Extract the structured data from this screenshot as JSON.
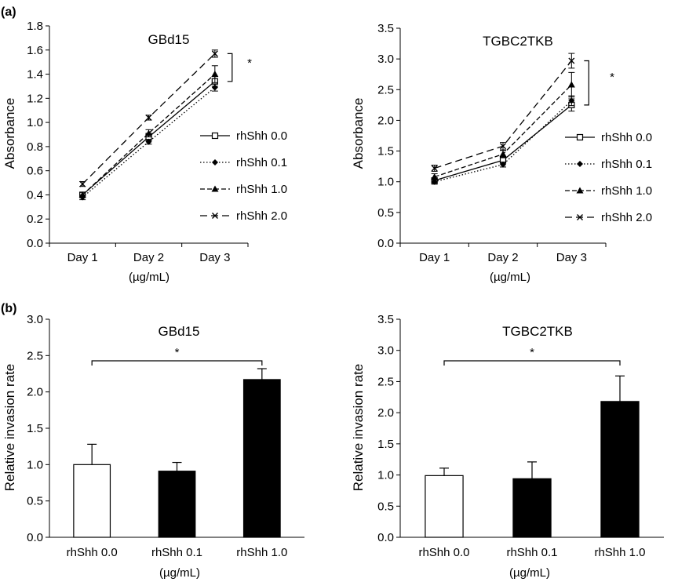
{
  "panels": {
    "a": "(a)",
    "b": "(b)"
  },
  "chart_data": [
    {
      "id": "a-left",
      "type": "line",
      "title": "GBd15",
      "ylabel": "Absorbance",
      "xlabel": "(µg/mL)",
      "categories": [
        "Day 1",
        "Day 2",
        "Day 3"
      ],
      "ylim": [
        0,
        1.8
      ],
      "yticks": [
        "0.0",
        "0.2",
        "0.4",
        "0.6",
        "0.8",
        "1.0",
        "1.2",
        "1.4",
        "1.6",
        "1.8"
      ],
      "significance": "*",
      "series": [
        {
          "name": "rhShh 0.0",
          "values": [
            0.4,
            0.88,
            1.34
          ],
          "errors": [
            0.02,
            0.03,
            0.04
          ],
          "dash": "solid",
          "marker": "square"
        },
        {
          "name": "rhShh 0.1",
          "values": [
            0.38,
            0.84,
            1.29
          ],
          "errors": [
            0.02,
            0.02,
            0.03
          ],
          "dash": "dotted",
          "marker": "diamond"
        },
        {
          "name": "rhShh 1.0",
          "values": [
            0.4,
            0.91,
            1.4
          ],
          "errors": [
            0.02,
            0.03,
            0.07
          ],
          "dash": "dashed",
          "marker": "triangle"
        },
        {
          "name": "rhShh 2.0",
          "values": [
            0.49,
            1.04,
            1.57
          ],
          "errors": [
            0.02,
            0.02,
            0.03
          ],
          "dash": "longdash",
          "marker": "x"
        }
      ]
    },
    {
      "id": "a-right",
      "type": "line",
      "title": "TGBC2TKB",
      "ylabel": "Absorbance",
      "xlabel": "(µg/mL)",
      "categories": [
        "Day 1",
        "Day 2",
        "Day 3"
      ],
      "ylim": [
        0,
        3.5
      ],
      "yticks": [
        "0.0",
        "0.5",
        "1.0",
        "1.5",
        "2.0",
        "2.5",
        "3.0",
        "3.5"
      ],
      "significance": "*",
      "series": [
        {
          "name": "rhShh 0.0",
          "values": [
            1.02,
            1.35,
            2.25
          ],
          "errors": [
            0.04,
            0.05,
            0.1
          ],
          "dash": "solid",
          "marker": "square"
        },
        {
          "name": "rhShh 0.1",
          "values": [
            1.0,
            1.28,
            2.32
          ],
          "errors": [
            0.04,
            0.04,
            0.08
          ],
          "dash": "dotted",
          "marker": "diamond"
        },
        {
          "name": "rhShh 1.0",
          "values": [
            1.08,
            1.45,
            2.58
          ],
          "errors": [
            0.05,
            0.06,
            0.2
          ],
          "dash": "dashed",
          "marker": "triangle"
        },
        {
          "name": "rhShh 2.0",
          "values": [
            1.22,
            1.58,
            2.97
          ],
          "errors": [
            0.05,
            0.06,
            0.12
          ],
          "dash": "longdash",
          "marker": "x"
        }
      ]
    },
    {
      "id": "b-left",
      "type": "bar",
      "title": "GBd15",
      "ylabel": "Relative invasion rate",
      "xlabel": "(µg/mL)",
      "categories": [
        "rhShh 0.0",
        "rhShh 0.1",
        "rhShh 1.0"
      ],
      "values": [
        1.0,
        0.91,
        2.17
      ],
      "errors": [
        0.28,
        0.12,
        0.15
      ],
      "fills": [
        "#ffffff",
        "#000000",
        "#000000"
      ],
      "ylim": [
        0,
        3.0
      ],
      "yticks": [
        "0.0",
        "0.5",
        "1.0",
        "1.5",
        "2.0",
        "2.5",
        "3.0"
      ],
      "significance": "*"
    },
    {
      "id": "b-right",
      "type": "bar",
      "title": "TGBC2TKB",
      "ylabel": "Relative invasion rate",
      "xlabel": "(µg/mL)",
      "categories": [
        "rhShh 0.0",
        "rhShh 0.1",
        "rhShh 1.0"
      ],
      "values": [
        0.99,
        0.94,
        2.18
      ],
      "errors": [
        0.12,
        0.27,
        0.41
      ],
      "fills": [
        "#ffffff",
        "#000000",
        "#000000"
      ],
      "ylim": [
        0,
        3.5
      ],
      "yticks": [
        "0.0",
        "0.5",
        "1.0",
        "1.5",
        "2.0",
        "2.5",
        "3.0",
        "3.5"
      ],
      "significance": "*"
    }
  ]
}
